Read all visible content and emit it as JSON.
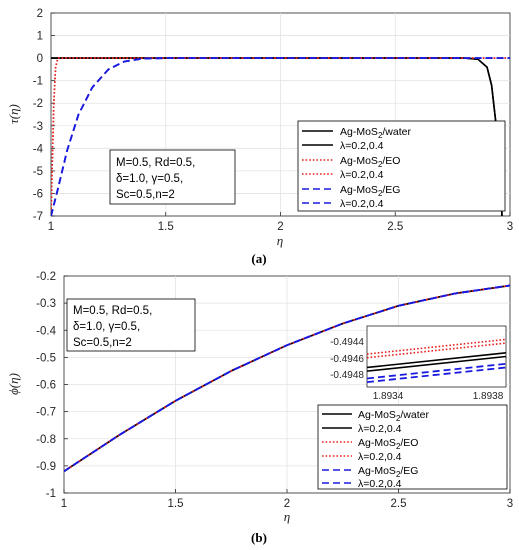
{
  "chart_data": [
    {
      "panel": "a",
      "type": "line",
      "caption": "(a)",
      "xlabel": "η",
      "ylabel": "τ(η)",
      "xlim": [
        1,
        3
      ],
      "ylim": [
        -7,
        2
      ],
      "xticks": [
        "1",
        "1.5",
        "2",
        "2.5",
        "3"
      ],
      "yticks": [
        "2",
        "1",
        "0",
        "-1",
        "-2",
        "-3",
        "-4",
        "-5",
        "-6",
        "-7"
      ],
      "grid": true,
      "annotation": [
        "M=0.5, Rd=0.5,",
        "δ=1.0, γ=0.5,",
        "Sc=0.5,n=2"
      ],
      "legend_position": "bottom-right",
      "series": [
        {
          "name": "Ag-MoS2/water",
          "color": "#000000",
          "dash": "solid",
          "x": [
            1,
            2,
            2.8,
            2.86,
            2.9,
            2.92,
            2.94,
            2.955,
            2.965
          ],
          "y": [
            0,
            0,
            0,
            -0.05,
            -0.4,
            -1.2,
            -3.0,
            -5.0,
            -7.0
          ]
        },
        {
          "name": "λ=0.2,0.4",
          "color": "#000000",
          "dash": "solid",
          "x": [
            1,
            2,
            2.8,
            2.86,
            2.9,
            2.92,
            2.94,
            2.955,
            2.965
          ],
          "y": [
            0,
            0,
            0,
            -0.05,
            -0.4,
            -1.2,
            -3.0,
            -5.0,
            -7.0
          ]
        },
        {
          "name": "Ag-MoS2/EO",
          "color": "#e8201e",
          "dash": "dotted",
          "x": [
            1,
            1.005,
            1.012,
            1.02,
            1.03,
            1.5,
            3
          ],
          "y": [
            -7,
            -5,
            -2,
            -0.4,
            0,
            0,
            0
          ]
        },
        {
          "name": "λ=0.2,0.4",
          "color": "#e8201e",
          "dash": "dotted",
          "x": [
            1,
            1.005,
            1.012,
            1.02,
            1.03,
            1.5,
            3
          ],
          "y": [
            -7,
            -5,
            -2,
            -0.4,
            0,
            0,
            0
          ]
        },
        {
          "name": "Ag-MoS2/EG",
          "color": "#1a1adf",
          "dash": "dashed",
          "x": [
            1,
            1.03,
            1.07,
            1.12,
            1.18,
            1.25,
            1.32,
            1.4,
            1.5,
            3
          ],
          "y": [
            -7,
            -5.8,
            -4.1,
            -2.5,
            -1.3,
            -0.5,
            -0.15,
            -0.02,
            0,
            0
          ]
        },
        {
          "name": "λ=0.2,0.4",
          "color": "#1a1adf",
          "dash": "dashed",
          "x": [
            1,
            1.03,
            1.07,
            1.12,
            1.18,
            1.25,
            1.32,
            1.4,
            1.5,
            3
          ],
          "y": [
            -7,
            -5.8,
            -4.1,
            -2.5,
            -1.3,
            -0.5,
            -0.15,
            -0.02,
            0,
            0
          ]
        }
      ]
    },
    {
      "panel": "b",
      "type": "line",
      "caption": "(b)",
      "xlabel": "η",
      "ylabel": "ϕ(η)",
      "xlim": [
        1,
        3
      ],
      "ylim": [
        -1,
        -0.2
      ],
      "xticks": [
        "1",
        "1.5",
        "2",
        "2.5",
        "3"
      ],
      "yticks": [
        "-0.2",
        "-0.3",
        "-0.4",
        "-0.5",
        "-0.6",
        "-0.7",
        "-0.8",
        "-0.9",
        "-1"
      ],
      "grid": true,
      "annotation": [
        "M=0.5, Rd=0.5,",
        "δ=1.0, γ=0.5,",
        "Sc=0.5,n=2"
      ],
      "legend_position": "bottom-right",
      "series": [
        {
          "name": "Ag-MoS2/water",
          "color": "#000000",
          "dash": "solid",
          "x": [
            1,
            1.25,
            1.5,
            1.75,
            2,
            2.25,
            2.5,
            2.75,
            3
          ],
          "y": [
            -0.92,
            -0.785,
            -0.66,
            -0.55,
            -0.455,
            -0.375,
            -0.31,
            -0.265,
            -0.235
          ]
        },
        {
          "name": "λ=0.2,0.4",
          "color": "#000000",
          "dash": "solid",
          "x": [
            1,
            1.25,
            1.5,
            1.75,
            2,
            2.25,
            2.5,
            2.75,
            3
          ],
          "y": [
            -0.92,
            -0.785,
            -0.66,
            -0.55,
            -0.455,
            -0.375,
            -0.31,
            -0.265,
            -0.235
          ]
        },
        {
          "name": "Ag-MoS2/EO",
          "color": "#e8201e",
          "dash": "dotted",
          "x": [
            1,
            1.25,
            1.5,
            1.75,
            2,
            2.25,
            2.5,
            2.75,
            3
          ],
          "y": [
            -0.92,
            -0.785,
            -0.66,
            -0.55,
            -0.455,
            -0.375,
            -0.31,
            -0.265,
            -0.235
          ]
        },
        {
          "name": "λ=0.2,0.4",
          "color": "#e8201e",
          "dash": "dotted",
          "x": [
            1,
            1.25,
            1.5,
            1.75,
            2,
            2.25,
            2.5,
            2.75,
            3
          ],
          "y": [
            -0.92,
            -0.785,
            -0.66,
            -0.55,
            -0.455,
            -0.375,
            -0.31,
            -0.265,
            -0.235
          ]
        },
        {
          "name": "Ag-MoS2/EG",
          "color": "#1a1adf",
          "dash": "dashed",
          "x": [
            1,
            1.25,
            1.5,
            1.75,
            2,
            2.25,
            2.5,
            2.75,
            3
          ],
          "y": [
            -0.92,
            -0.785,
            -0.66,
            -0.55,
            -0.455,
            -0.375,
            -0.31,
            -0.265,
            -0.235
          ]
        },
        {
          "name": "λ=0.2,0.4",
          "color": "#1a1adf",
          "dash": "dashed",
          "x": [
            1,
            1.25,
            1.5,
            1.75,
            2,
            2.25,
            2.5,
            2.75,
            3
          ],
          "y": [
            -0.92,
            -0.785,
            -0.66,
            -0.55,
            -0.455,
            -0.375,
            -0.31,
            -0.265,
            -0.235
          ]
        }
      ],
      "inset": {
        "xlim": [
          1.8934,
          1.8938
        ],
        "ylim": [
          -0.495,
          -0.494
        ],
        "xticks": [
          "1.8934",
          "1.8938"
        ],
        "yticks": [
          "-0.4944",
          "-0.4946",
          "-0.4948"
        ],
        "lines": [
          {
            "series": "Ag-MoS2/EO",
            "color": "#e8201e",
            "dash": "dotted",
            "y0": -0.49446,
            "y1": -0.49422
          },
          {
            "series": "λ=0.2,0.4",
            "color": "#e8201e",
            "dash": "dotted",
            "y0": -0.49452,
            "y1": -0.49428
          },
          {
            "series": "Ag-MoS2/water",
            "color": "#000000",
            "dash": "solid",
            "y0": -0.49468,
            "y1": -0.49444
          },
          {
            "series": "λ=0.2,0.4",
            "color": "#000000",
            "dash": "solid",
            "y0": -0.49474,
            "y1": -0.4945
          },
          {
            "series": "Ag-MoS2/EG",
            "color": "#1a1adf",
            "dash": "dashed",
            "y0": -0.49486,
            "y1": -0.49462
          },
          {
            "series": "λ=0.2,0.4",
            "color": "#1a1adf",
            "dash": "dashed",
            "y0": -0.49492,
            "y1": -0.49468
          }
        ]
      }
    }
  ]
}
